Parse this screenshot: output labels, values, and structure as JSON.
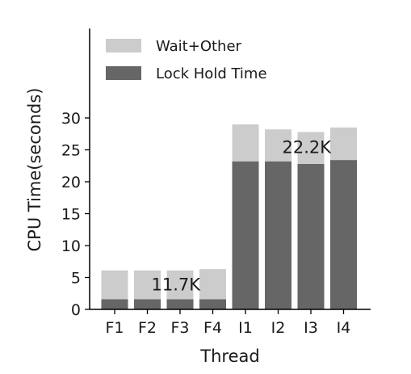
{
  "chart_data": {
    "type": "bar",
    "stacked": true,
    "title": "",
    "xlabel": "Thread",
    "ylabel": "CPU Time(seconds)",
    "ylim": [
      0,
      44
    ],
    "yticks": [
      0,
      5,
      10,
      15,
      20,
      25,
      30
    ],
    "categories": [
      "F1",
      "F2",
      "F3",
      "F4",
      "I1",
      "I2",
      "I3",
      "I4"
    ],
    "series": [
      {
        "name": "Lock Hold Time",
        "color": "#666666",
        "values": [
          1.6,
          1.6,
          1.6,
          1.6,
          23.2,
          23.2,
          22.8,
          23.4
        ]
      },
      {
        "name": "Wait+Other",
        "color": "#cccccc",
        "values": [
          4.5,
          4.5,
          4.5,
          4.7,
          5.8,
          5.0,
          5.0,
          5.1
        ]
      }
    ],
    "legend": {
      "placement": "top-left",
      "order": [
        "Wait+Other",
        "Lock Hold Time"
      ]
    },
    "grid": false,
    "annotations": [
      {
        "text": "11.7K",
        "category_span": [
          "F1",
          "F4"
        ],
        "y": 4.0
      },
      {
        "text": "22.2K",
        "category_span": [
          "I1",
          "I4"
        ],
        "y": 25.5
      }
    ]
  }
}
